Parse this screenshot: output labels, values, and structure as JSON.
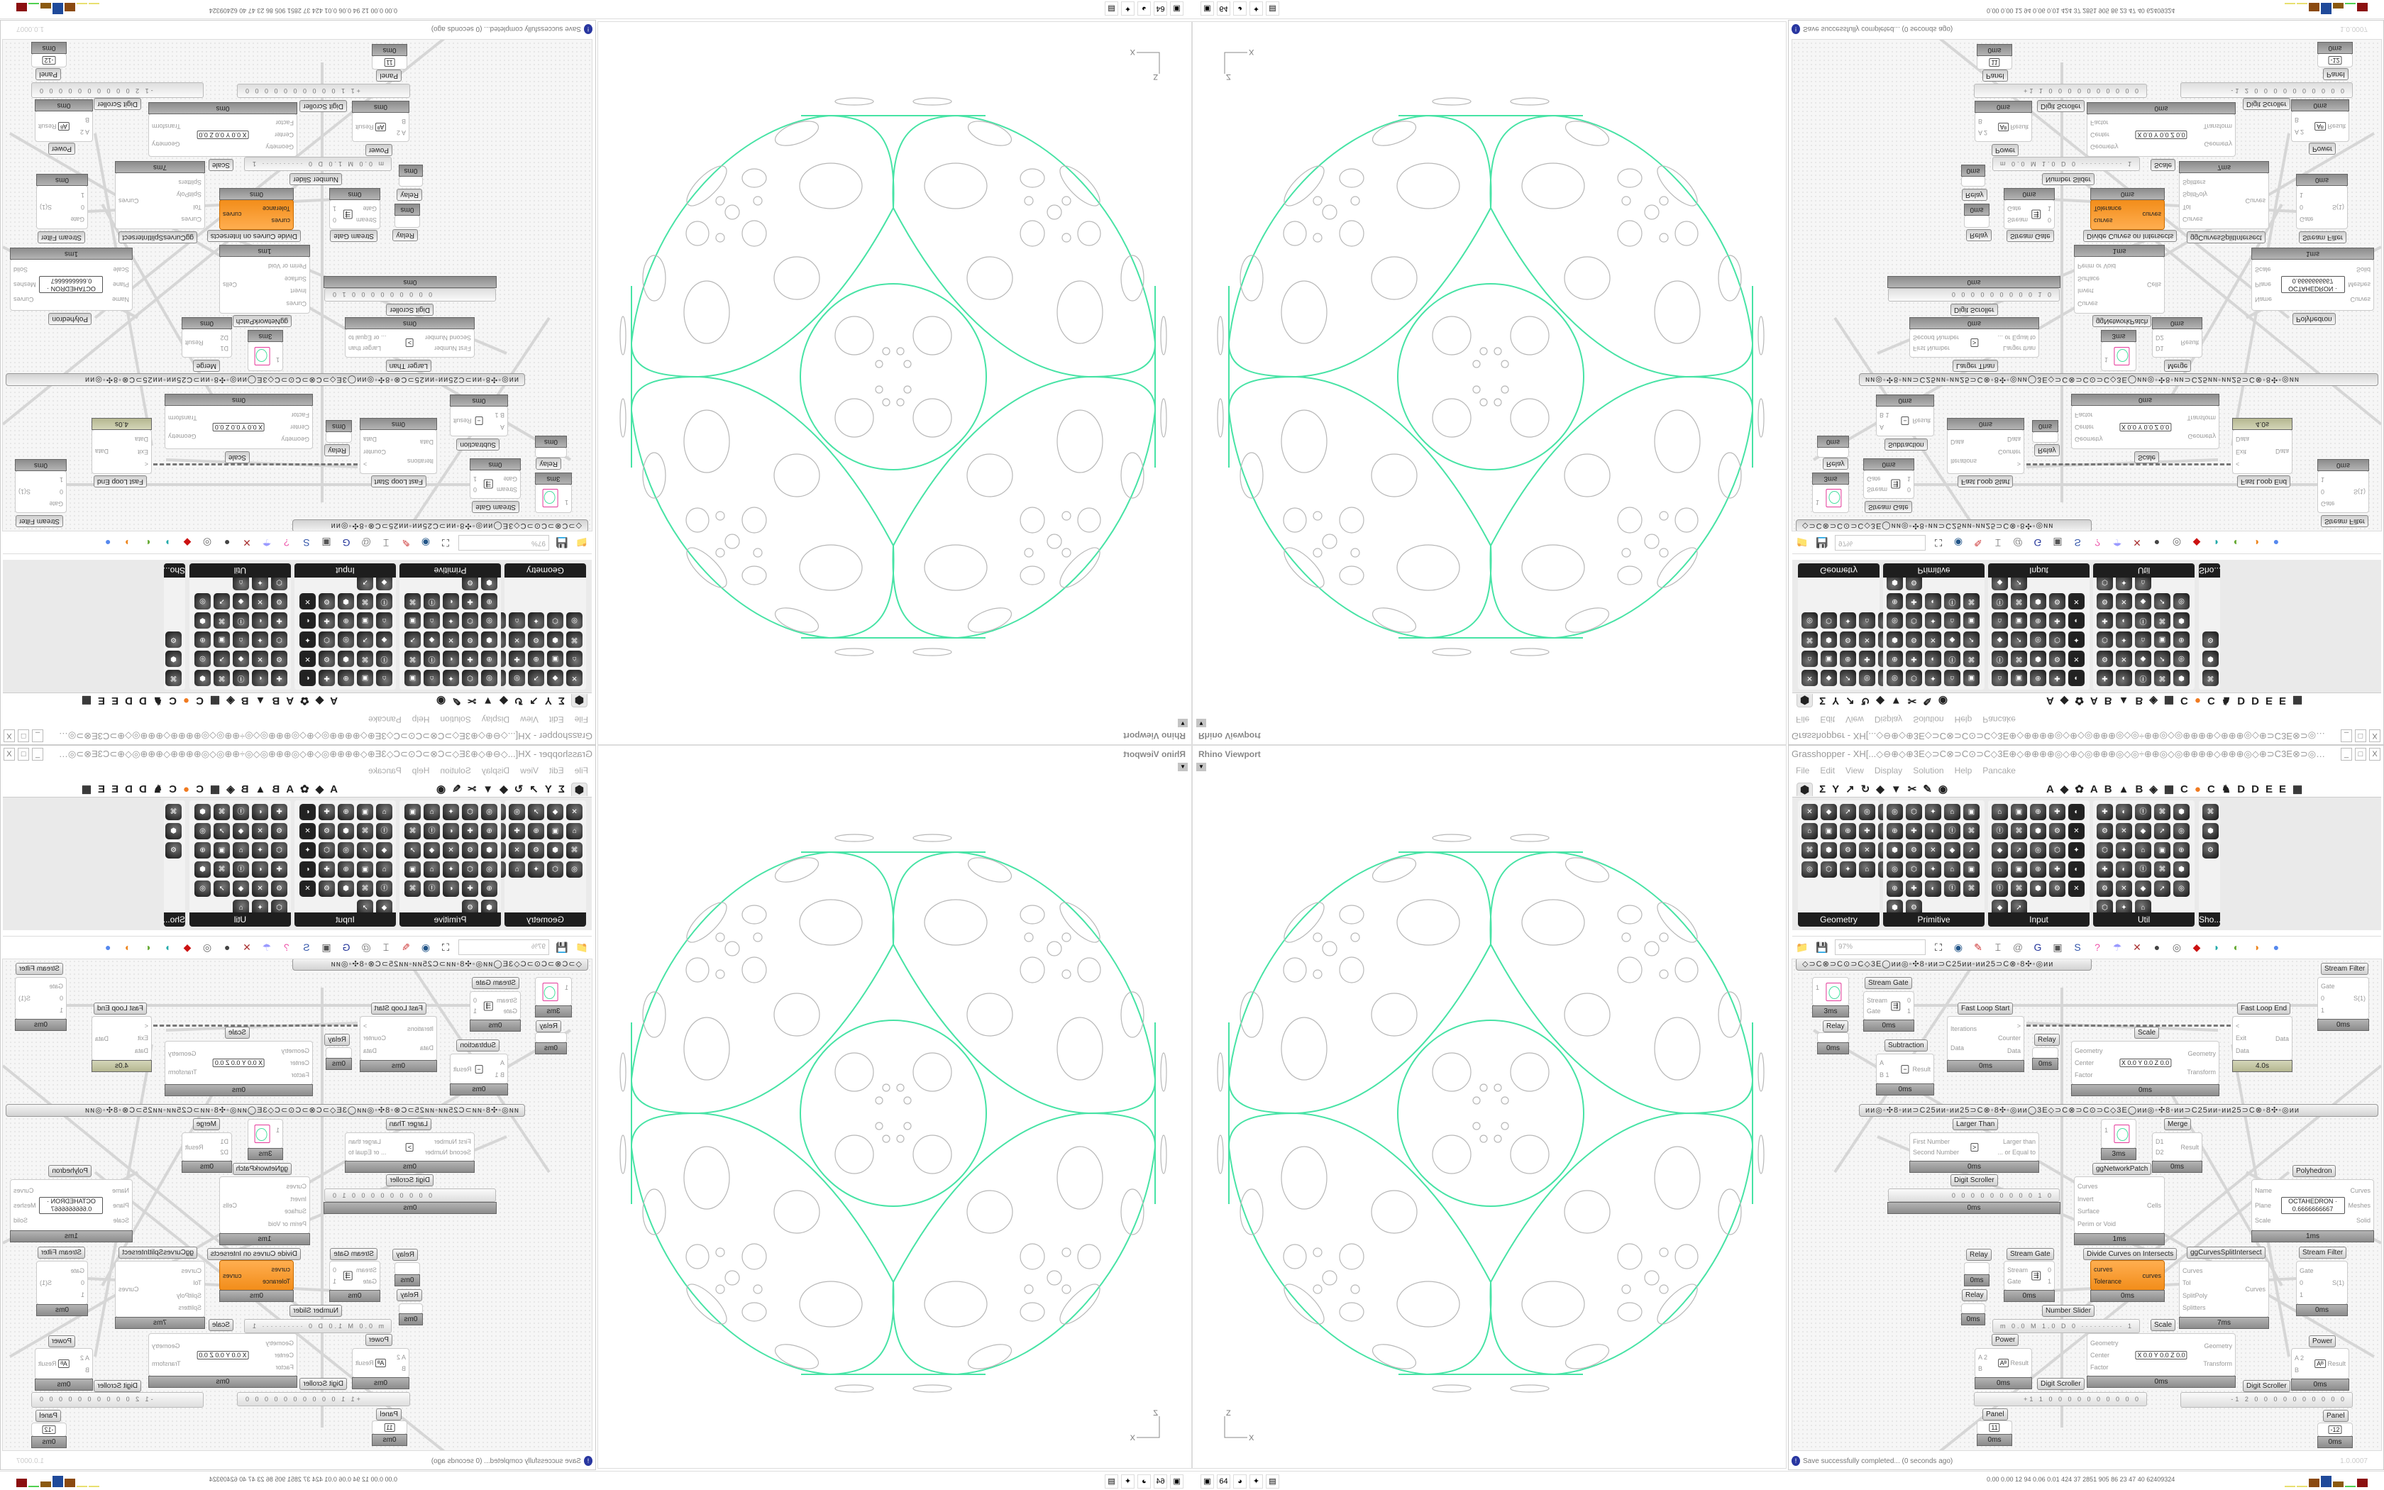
{
  "viewport": {
    "title": "Rhino Viewport",
    "axis_z": "Z",
    "axis_x": "X",
    "curve_color": "#47e3a5",
    "cell_color": "#b8b8b8"
  },
  "grasshopper": {
    "title": "Grasshopper - XH[...◇⊖⊕◇⊕3E◇⊃C⊗⊃C⊙⊃C◇3E⊕◇⊕⊕⊕⊕◎◇⊕◇◎⊕⊕⊕◎◇◎÷⊕⊕◎◇◎⊕⊕⊕⊕◇⊕⊕⊕◎◇⊕⊃C3E⊗⊃◎⊗⊃...",
    "window_buttons": [
      "_",
      "□",
      "X"
    ],
    "menu": [
      "File",
      "Edit",
      "View",
      "Display",
      "Solution",
      "Help",
      "Pancake"
    ],
    "tabs": [
      "⬢",
      "Σ",
      "Y",
      "↗",
      "↻",
      "◆",
      "▼",
      "✂",
      "✎",
      "◉",
      "A",
      "◆",
      "✿",
      "A",
      "B",
      "▲",
      "B",
      "◈",
      "▦",
      "C",
      "●",
      "C",
      "♞",
      "D",
      "D",
      "E",
      "E",
      "▦"
    ],
    "panels": [
      "Geometry",
      "Primitive",
      "Input",
      "Util",
      "Sho..."
    ],
    "toolbar": {
      "zoom": "97%",
      "icons": [
        "📁",
        "💾",
        "⛶",
        "◉",
        "✎",
        "⌶",
        "@",
        "G",
        "▣",
        "S",
        "?",
        "☂",
        "✕",
        "●",
        "◎",
        "◆",
        "◗",
        "◐",
        "◑",
        "●"
      ]
    },
    "scribbles": [
      "◇⊃C⊗⊃C⊙⊃C◇3E◯ᴎᴎ◎◦✣8◦ᴎᴎ⊃C25ᴎᴎ◦ᴎᴎ25⊃C⊗◦8✣◦◎ᴎᴎ",
      "ᴎᴎ◎◦✣8◦ᴎᴎ⊃C25ᴎᴎ◦ᴎᴎ25⊃C⊗◦8✣◦◎ᴎᴎ◯3E◇⊃C⊗⊃C⊙⊃C◇3E◯ᴎᴎ◎◦✣8◦ᴎᴎ⊃C25ᴎᴎ◦ᴎᴎ25⊃C⊗◦8✣◦◎ᴎᴎ"
    ],
    "tags": [
      "Stream Filter",
      "Stream Gate",
      "Relay",
      "Subtraction",
      "Fast Loop Start",
      "Relay",
      "Scale",
      "Fast Loop End",
      "Larger Than",
      "ggNetworkPatch",
      "Merge",
      "Digit Scroller",
      "Polyhedron",
      "Relay",
      "Relay",
      "Stream Gate",
      "Divide Curves on Intersects",
      "ggCurvesSplitIntersect",
      "Stream Filter",
      "Number Slider",
      "Scale",
      "Power",
      "Digit Scroller",
      "Digit Scroller",
      "Power",
      "Panel",
      "Panel"
    ],
    "components": [
      {
        "kind": "swatch",
        "inputs": [
          "1",
          ""
        ],
        "outputs": [],
        "mid": "",
        "footer": "3ms"
      },
      {
        "inputs": [
          "Stream",
          "Gate"
        ],
        "outputs": [
          "0",
          "1"
        ],
        "mid": "⇶",
        "footer": "0ms"
      },
      {
        "kind": "relay",
        "inputs": [],
        "outputs": [],
        "mid": "",
        "footer": "0ms"
      },
      {
        "inputs": [
          "A",
          "B 1"
        ],
        "outputs": [
          "Result"
        ],
        "mid": "−",
        "footer": "0ms"
      },
      {
        "inputs": [
          "Iterations",
          "Data"
        ],
        "outputs": [
          ">",
          "Counter",
          "Data"
        ],
        "mid": "",
        "footer": "0ms"
      },
      {
        "kind": "relay",
        "inputs": [],
        "outputs": [],
        "mid": "",
        "footer": "0ms"
      },
      {
        "inputs": [
          "Geometry",
          "Center",
          "Factor"
        ],
        "outputs": [
          "Geometry",
          "Transform"
        ],
        "mid": "X 0.0 Y 0.0 Z 0.0",
        "footer": "0ms"
      },
      {
        "kind": "olive",
        "inputs": [
          "<",
          "Exit",
          "Data"
        ],
        "outputs": [
          "Data"
        ],
        "mid": "",
        "footer": "4.0s"
      },
      {
        "inputs": [
          "Gate",
          "0",
          "1"
        ],
        "outputs": [
          "S(1)"
        ],
        "mid": "",
        "footer": "0ms"
      },
      {
        "inputs": [
          "First Number",
          "Second Number"
        ],
        "outputs": [
          "Larger than",
          "... or Equal to"
        ],
        "mid": ">",
        "footer": "0ms"
      },
      {
        "kind": "swatch",
        "inputs": [
          "1",
          ""
        ],
        "outputs": [],
        "mid": "",
        "footer": "3ms"
      },
      {
        "inputs": [
          "D1",
          "D2"
        ],
        "outputs": [
          "Result"
        ],
        "mid": "",
        "footer": "0ms"
      },
      {
        "inputs": [
          "Curves",
          "Invert",
          "Surface",
          "Perim or Void"
        ],
        "outputs": [
          "Cells"
        ],
        "mid": "",
        "footer": "1ms"
      },
      {
        "inputs": [
          "Name",
          "Plane",
          "Scale"
        ],
        "outputs": [
          "Curves",
          "Meshes",
          "Solid"
        ],
        "mid": "OCTAHEDRON · 0.6666666667",
        "footer": "1ms"
      },
      {
        "kind": "relay",
        "inputs": [],
        "outputs": [],
        "mid": "",
        "footer": "0ms"
      },
      {
        "kind": "relay",
        "inputs": [],
        "outputs": [],
        "mid": "",
        "footer": "0ms"
      },
      {
        "inputs": [
          "Stream",
          "Gate"
        ],
        "outputs": [
          "0",
          "1"
        ],
        "mid": "⇶",
        "footer": "0ms"
      },
      {
        "kind": "orange",
        "inputs": [
          "curves",
          "Tolerance"
        ],
        "outputs": [
          "curves"
        ],
        "mid": "",
        "footer": "0ms"
      },
      {
        "inputs": [
          "Curves",
          "Tol",
          "SplitPoly",
          "Splitters"
        ],
        "outputs": [
          "Curves"
        ],
        "mid": "",
        "footer": "7ms"
      },
      {
        "inputs": [
          "Gate",
          "0",
          "1"
        ],
        "outputs": [
          "S(1)"
        ],
        "mid": "",
        "footer": "0ms"
      },
      {
        "inputs": [
          "A 2",
          "B"
        ],
        "outputs": [
          "Result"
        ],
        "mid": "Aᴮ",
        "footer": "0ms"
      },
      {
        "inputs": [
          "Geometry",
          "Center",
          "Factor"
        ],
        "outputs": [
          "Geometry",
          "Transform"
        ],
        "mid": "X 0.0 Y 0.0 Z 0.0",
        "footer": "0ms"
      },
      {
        "inputs": [
          "A 2",
          "B"
        ],
        "outputs": [
          "Result"
        ],
        "mid": "Aᴮ",
        "footer": "0ms"
      },
      {
        "kind": "panel",
        "inputs": [],
        "outputs": [],
        "mid": "11",
        "footer": "0ms"
      },
      {
        "kind": "panel",
        "inputs": [],
        "outputs": [],
        "mid": "-12",
        "footer": "0ms"
      }
    ],
    "sliders": [
      {
        "text": "0 0 0 0 0 0 0 0 0 1 0",
        "footer": "0ms"
      },
      {
        "text": "m 0.0  M 1.0  D 0  ··········  1",
        "footer": ""
      },
      {
        "text": "+1 1 0 0 0 0 0 0 0 0 0 0",
        "footer": ""
      },
      {
        "text": "-1 2 0 0 0 0 0 0 0 0 0 0",
        "footer": ""
      }
    ],
    "status": {
      "message": "Save successfully completed... (0 seconds ago)",
      "version": "1.0.0007"
    }
  },
  "taskbar": {
    "apps": [
      "▣",
      "64",
      "◕",
      "✦",
      "▤"
    ],
    "stats": "0.00 0.00  12  94  0.06 0.01  424  37  2851  905  86  23  47  40  62409324",
    "bar_colors": [
      "#e8e070",
      "#e8e070",
      "#8b4a10",
      "#1f4a9a",
      "#8b5a10",
      "#50d050",
      "#8b1010"
    ]
  }
}
